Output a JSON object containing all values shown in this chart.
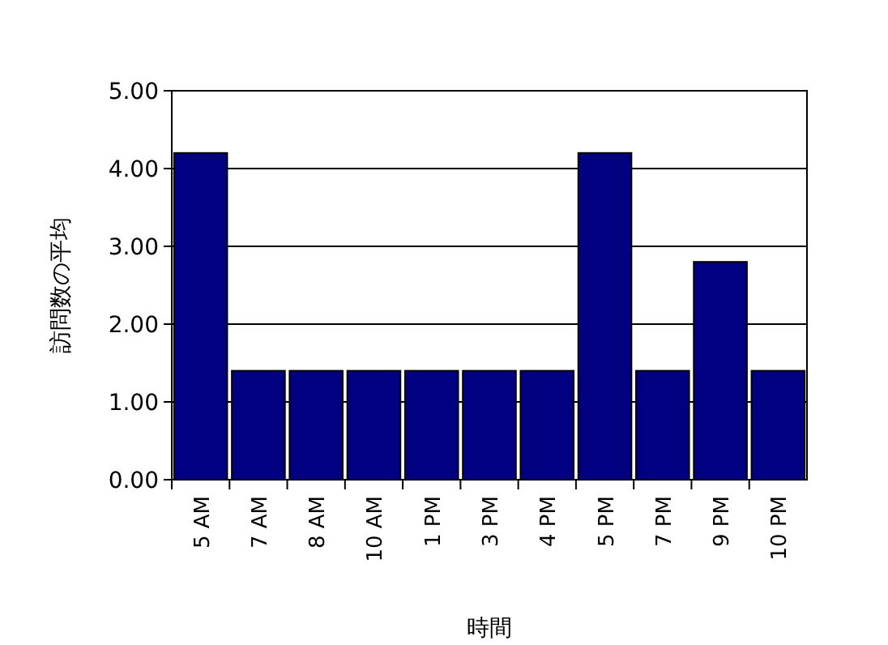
{
  "chart_data": {
    "type": "bar",
    "xlabel": "時間",
    "ylabel": "訪問数の平均",
    "categories": [
      "5 AM",
      "7 AM",
      "8 AM",
      "10 AM",
      "1 PM",
      "3 PM",
      "4 PM",
      "5 PM",
      "7 PM",
      "9 PM",
      "10 PM"
    ],
    "values": [
      4.2,
      1.4,
      1.4,
      1.4,
      1.4,
      1.4,
      1.4,
      4.2,
      1.4,
      2.8,
      1.4
    ],
    "color": "#000080",
    "ylim": [
      0,
      5
    ],
    "yticks": [
      {
        "value": 0,
        "label": "0.00"
      },
      {
        "value": 1,
        "label": "1.00"
      },
      {
        "value": 2,
        "label": "2.00"
      },
      {
        "value": 3,
        "label": "3.00"
      },
      {
        "value": 4,
        "label": "4.00"
      },
      {
        "value": 5,
        "label": "5.00"
      }
    ],
    "grid": "y"
  }
}
